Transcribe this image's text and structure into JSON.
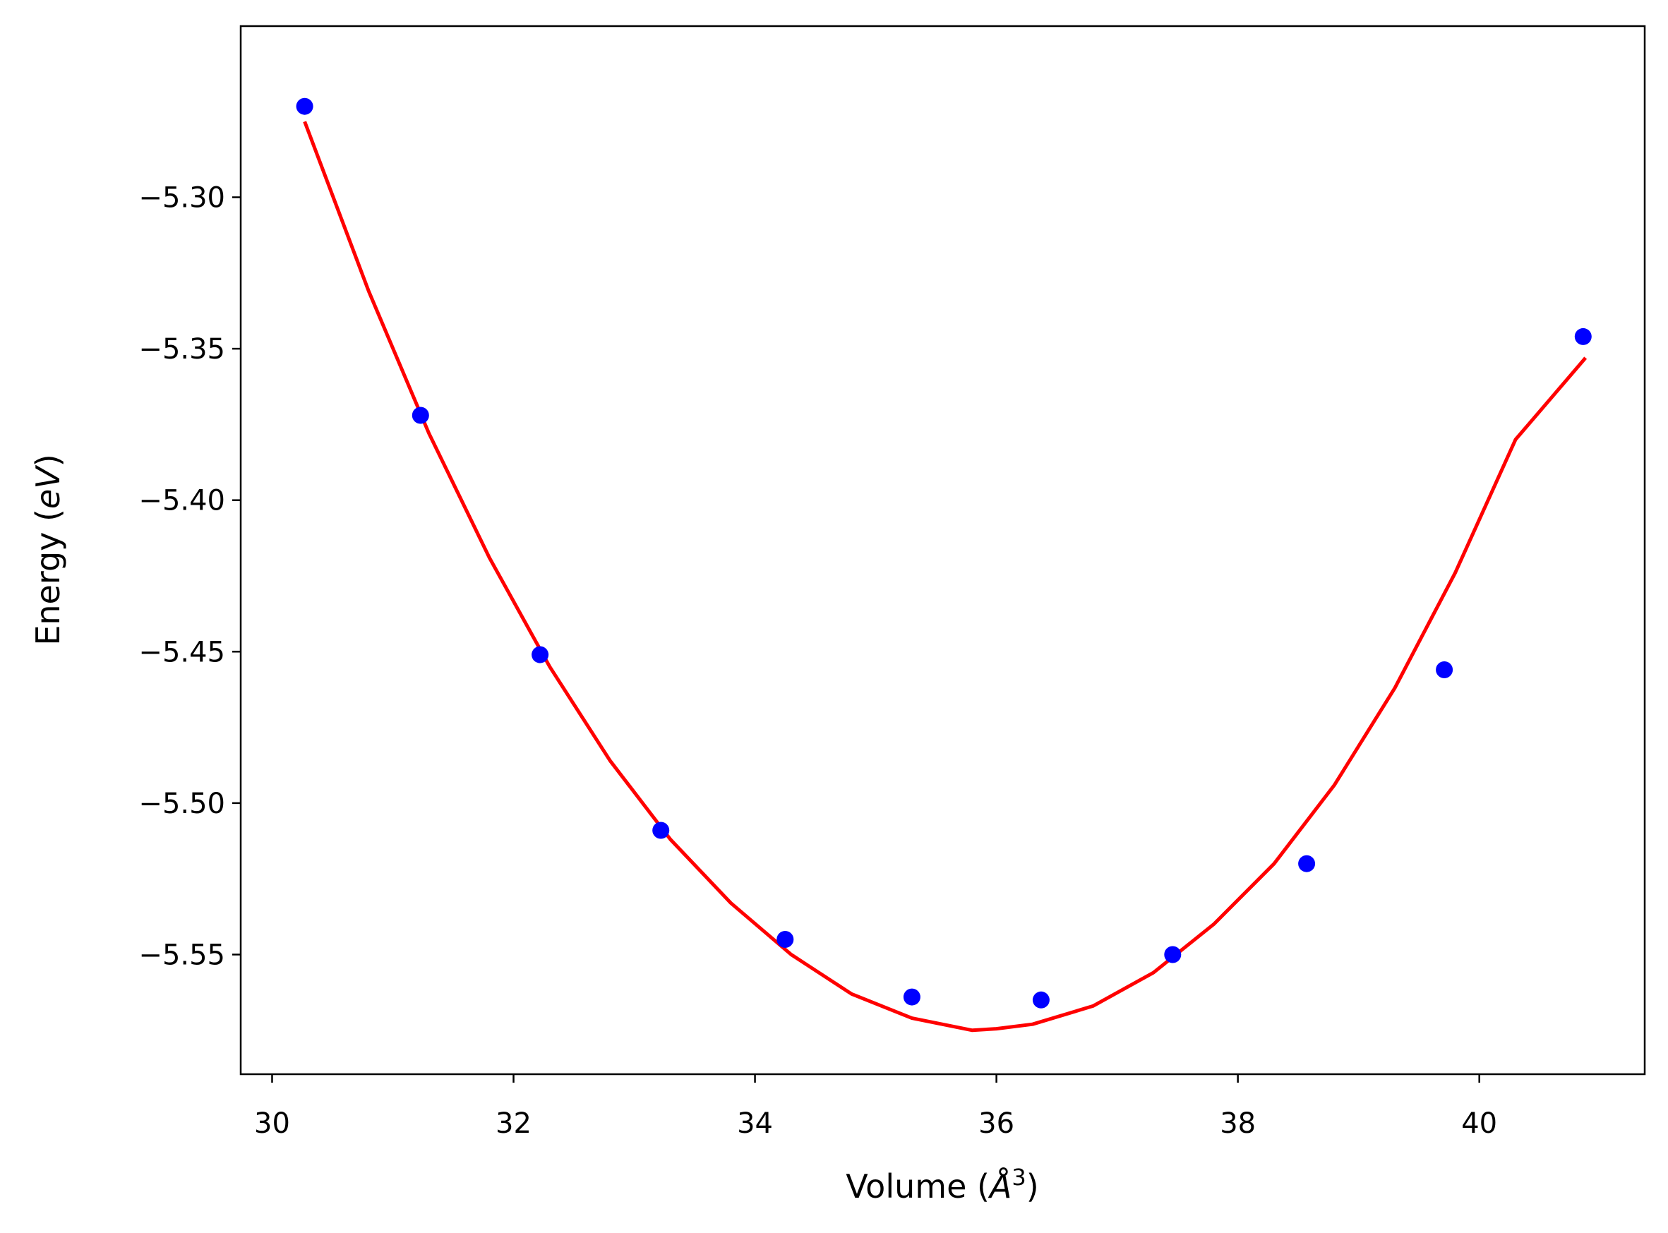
{
  "chart_data": {
    "type": "scatter",
    "title": "",
    "xlabel_prefix": "Volume (",
    "xlabel_unit": "Å",
    "xlabel_exponent": "3",
    "xlabel_suffix": ")",
    "ylabel_prefix": "Energy (",
    "ylabel_unit": "eV",
    "ylabel_suffix": ")",
    "xlim": [
      29.74,
      41.37
    ],
    "ylim": [
      -5.5895,
      -5.2435
    ],
    "xticks": [
      30,
      32,
      34,
      36,
      38,
      40
    ],
    "xtick_labels": [
      "30",
      "32",
      "34",
      "36",
      "38",
      "40"
    ],
    "yticks": [
      -5.55,
      -5.5,
      -5.45,
      -5.4,
      -5.35,
      -5.3
    ],
    "ytick_labels": [
      "−5.55",
      "−5.50",
      "−5.45",
      "−5.40",
      "−5.35",
      "−5.30"
    ],
    "grid": false,
    "series": [
      {
        "kind": "points",
        "color": "#0000ff",
        "x": [
          30.27,
          31.23,
          32.22,
          33.22,
          34.25,
          35.3,
          36.37,
          37.46,
          38.57,
          39.71,
          40.86
        ],
        "y": [
          -5.27,
          -5.372,
          -5.451,
          -5.509,
          -5.545,
          -5.564,
          -5.565,
          -5.55,
          -5.52,
          -5.456,
          -5.346
        ]
      },
      {
        "kind": "fit-curve",
        "color": "#ff0000",
        "x": [
          30.27,
          30.8,
          31.3,
          31.8,
          32.3,
          32.8,
          33.3,
          33.8,
          34.3,
          34.8,
          35.3,
          35.8,
          36.0,
          36.3,
          36.8,
          37.3,
          37.8,
          38.3,
          38.8,
          39.3,
          39.8,
          40.3,
          40.88
        ],
        "y": [
          -5.275,
          -5.331,
          -5.378,
          -5.419,
          -5.455,
          -5.486,
          -5.512,
          -5.533,
          -5.55,
          -5.563,
          -5.571,
          -5.575,
          -5.5745,
          -5.573,
          -5.567,
          -5.556,
          -5.54,
          -5.52,
          -5.494,
          -5.462,
          -5.424,
          -5.38,
          -5.353
        ]
      }
    ]
  }
}
